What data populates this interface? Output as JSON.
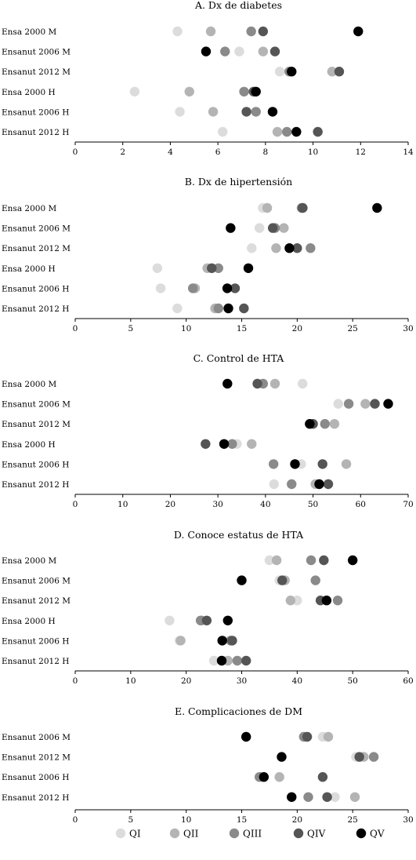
{
  "legend": {
    "items": [
      {
        "label": "QI",
        "color": "#dcdcdc"
      },
      {
        "label": "QII",
        "color": "#b4b4b4"
      },
      {
        "label": "QIII",
        "color": "#8a8a8a"
      },
      {
        "label": "QIV",
        "color": "#555555"
      },
      {
        "label": "QV",
        "color": "#000000"
      }
    ]
  },
  "chart_data": [
    {
      "type": "scatter",
      "title": "A. Dx de diabetes",
      "categories": [
        "Ensa 2000 M",
        "Ensanut 2006 M",
        "Ensanut 2012 M",
        "Ensa 2000 H",
        "Ensanut 2006 H",
        "Ensanut 2012 H"
      ],
      "xlim": [
        0,
        14
      ],
      "xticks": [
        0,
        2,
        4,
        6,
        8,
        10,
        12,
        14
      ],
      "series": [
        {
          "name": "QI",
          "values": [
            4.3,
            6.9,
            8.6,
            2.5,
            4.4,
            6.2
          ]
        },
        {
          "name": "QII",
          "values": [
            5.7,
            7.9,
            10.8,
            4.8,
            5.8,
            8.5
          ]
        },
        {
          "name": "QIII",
          "values": [
            7.4,
            6.3,
            9.0,
            7.1,
            7.6,
            8.9
          ]
        },
        {
          "name": "QIV",
          "values": [
            7.9,
            8.4,
            11.1,
            7.5,
            7.2,
            10.2
          ]
        },
        {
          "name": "QV",
          "values": [
            11.9,
            5.5,
            9.1,
            7.6,
            8.3,
            9.3
          ]
        }
      ]
    },
    {
      "type": "scatter",
      "title": "B. Dx de hipertensión",
      "categories": [
        "Ensa 2000 M",
        "Ensanut 2006 M",
        "Ensanut 2012 M",
        "Ensa 2000 H",
        "Ensanut 2006 H",
        "Ensanut 2012 H"
      ],
      "xlim": [
        0,
        30
      ],
      "xticks": [
        0,
        5,
        10,
        15,
        20,
        25,
        30
      ],
      "series": [
        {
          "name": "QI",
          "values": [
            16.9,
            16.6,
            15.9,
            7.4,
            7.7,
            9.2
          ]
        },
        {
          "name": "QII",
          "values": [
            17.3,
            18.8,
            18.1,
            11.9,
            10.8,
            12.6
          ]
        },
        {
          "name": "QIII",
          "values": [
            20.4,
            18.0,
            21.2,
            12.9,
            10.6,
            12.9
          ]
        },
        {
          "name": "QIV",
          "values": [
            20.5,
            17.8,
            20.0,
            12.3,
            14.4,
            15.2
          ]
        },
        {
          "name": "QV",
          "values": [
            27.2,
            14.0,
            19.3,
            15.6,
            13.7,
            13.8
          ]
        }
      ]
    },
    {
      "type": "scatter",
      "title": "C. Control de HTA",
      "categories": [
        "Ensa 2000 M",
        "Ensanut 2006 M",
        "Ensanut 2012 M",
        "Ensa 2000 H",
        "Ensanut 2006 H",
        "Ensanut 2012 H"
      ],
      "xlim": [
        0,
        70
      ],
      "xticks": [
        0,
        10,
        20,
        30,
        40,
        50,
        60,
        70
      ],
      "series": [
        {
          "name": "QI",
          "values": [
            47.8,
            55.3,
            50.0,
            34.0,
            47.5,
            41.8
          ]
        },
        {
          "name": "QII",
          "values": [
            42.0,
            61.0,
            54.5,
            37.1,
            57.0,
            50.5
          ]
        },
        {
          "name": "QIII",
          "values": [
            39.5,
            57.5,
            52.5,
            33.0,
            41.7,
            45.5
          ]
        },
        {
          "name": "QIV",
          "values": [
            38.3,
            63.0,
            50.0,
            27.4,
            52.0,
            53.2
          ]
        },
        {
          "name": "QV",
          "values": [
            32.0,
            65.8,
            49.3,
            31.3,
            46.2,
            51.3
          ]
        }
      ]
    },
    {
      "type": "scatter",
      "title": "D. Conoce estatus de HTA",
      "categories": [
        "Ensa 2000 M",
        "Ensanut 2006 M",
        "Ensanut 2012 M",
        "Ensa 2000 H",
        "Ensanut 2006 H",
        "Ensanut 2012 H"
      ],
      "xlim": [
        0,
        60
      ],
      "xticks": [
        0,
        10,
        20,
        30,
        40,
        50,
        60
      ],
      "series": [
        {
          "name": "QI",
          "values": [
            35.0,
            36.8,
            40.0,
            17.0,
            18.8,
            25.0
          ]
        },
        {
          "name": "QII",
          "values": [
            36.3,
            37.8,
            38.8,
            22.8,
            19.0,
            27.5
          ]
        },
        {
          "name": "QIII",
          "values": [
            42.5,
            43.3,
            47.3,
            22.6,
            28.0,
            29.2
          ]
        },
        {
          "name": "QIV",
          "values": [
            44.8,
            37.3,
            44.2,
            23.7,
            28.3,
            30.8
          ]
        },
        {
          "name": "QV",
          "values": [
            50.0,
            30.0,
            45.3,
            27.5,
            26.5,
            26.4
          ]
        }
      ]
    },
    {
      "type": "scatter",
      "title": "E. Complicaciones de DM",
      "categories": [
        "Ensanut 2006 M",
        "Ensanut 2012 M",
        "Ensanut 2006 H",
        "Ensanut 2012 H"
      ],
      "xlim": [
        0,
        30
      ],
      "xticks": [
        0,
        5,
        10,
        15,
        20,
        25,
        30
      ],
      "series": [
        {
          "name": "QI",
          "values": [
            22.3,
            25.3,
            16.7,
            23.4
          ]
        },
        {
          "name": "QII",
          "values": [
            22.8,
            26.0,
            18.4,
            25.2
          ]
        },
        {
          "name": "QIII",
          "values": [
            20.6,
            26.9,
            16.6,
            21.0
          ]
        },
        {
          "name": "QIV",
          "values": [
            20.9,
            25.6,
            22.3,
            22.7
          ]
        },
        {
          "name": "QV",
          "values": [
            15.4,
            18.6,
            17.0,
            19.5
          ]
        }
      ]
    }
  ]
}
